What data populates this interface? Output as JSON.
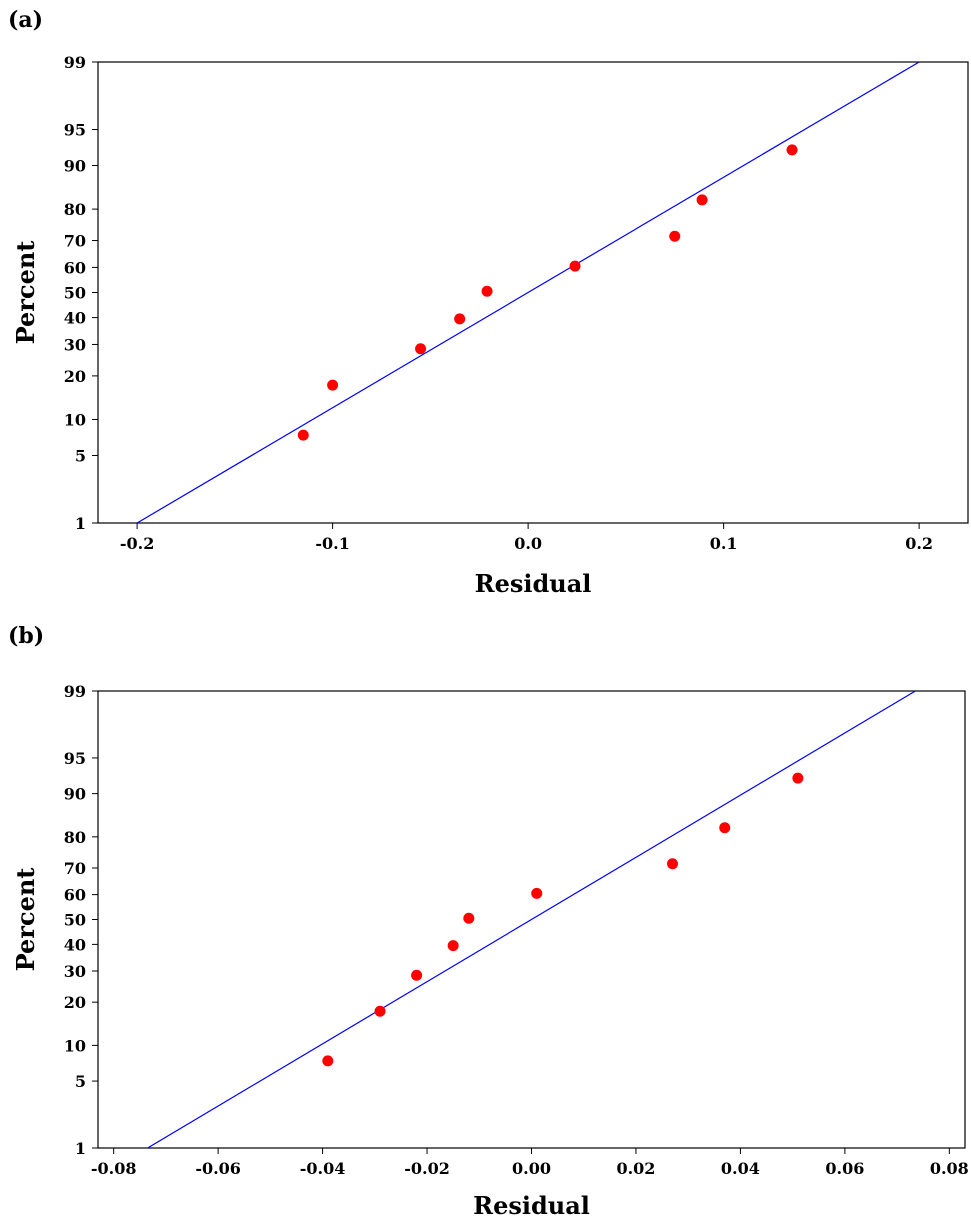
{
  "chart_data": [
    {
      "type": "scatter",
      "panel_label": "(a)",
      "title": "",
      "xlabel": "Residual",
      "ylabel": "Percent",
      "x_ticks": [
        "-0.2",
        "-0.1",
        "0.0",
        "0.1",
        "0.2"
      ],
      "x_tick_values": [
        -0.2,
        -0.1,
        0.0,
        0.1,
        0.2
      ],
      "y_ticks": [
        "1",
        "5",
        "10",
        "20",
        "30",
        "40",
        "50",
        "60",
        "70",
        "80",
        "90",
        "95",
        "99"
      ],
      "y_tick_values": [
        1,
        5,
        10,
        20,
        30,
        40,
        50,
        60,
        70,
        80,
        90,
        95,
        99
      ],
      "y_scale": "normal-probability",
      "xlim": [
        -0.22,
        0.225
      ],
      "ylim": [
        1,
        99
      ],
      "grid": false,
      "points": [
        {
          "x": -0.115,
          "y": 7.5
        },
        {
          "x": -0.1,
          "y": 17.5
        },
        {
          "x": -0.055,
          "y": 28.5
        },
        {
          "x": -0.035,
          "y": 39.5
        },
        {
          "x": -0.021,
          "y": 50.5
        },
        {
          "x": 0.024,
          "y": 60.5
        },
        {
          "x": 0.075,
          "y": 71.5
        },
        {
          "x": 0.089,
          "y": 82.5
        },
        {
          "x": 0.135,
          "y": 92.5
        }
      ],
      "fit_line": {
        "x": [
          -0.2,
          0.2
        ],
        "y": [
          1,
          99
        ]
      },
      "point_color": "#ff0000",
      "line_color": "#0000ff"
    },
    {
      "type": "scatter",
      "panel_label": "(b)",
      "title": "",
      "xlabel": "Residual",
      "ylabel": "Percent",
      "x_ticks": [
        "-0.08",
        "-0.06",
        "-0.04",
        "-0.02",
        "0.00",
        "0.02",
        "0.04",
        "0.06",
        "0.08"
      ],
      "x_tick_values": [
        -0.08,
        -0.06,
        -0.04,
        -0.02,
        0.0,
        0.02,
        0.04,
        0.06,
        0.08
      ],
      "y_ticks": [
        "1",
        "5",
        "10",
        "20",
        "30",
        "40",
        "50",
        "60",
        "70",
        "80",
        "90",
        "95",
        "99"
      ],
      "y_tick_values": [
        1,
        5,
        10,
        20,
        30,
        40,
        50,
        60,
        70,
        80,
        90,
        95,
        99
      ],
      "y_scale": "normal-probability",
      "xlim": [
        -0.083,
        0.083
      ],
      "ylim": [
        1,
        99
      ],
      "grid": false,
      "points": [
        {
          "x": -0.039,
          "y": 7.5
        },
        {
          "x": -0.029,
          "y": 17.5
        },
        {
          "x": -0.022,
          "y": 28.5
        },
        {
          "x": -0.015,
          "y": 39.5
        },
        {
          "x": -0.012,
          "y": 50.5
        },
        {
          "x": 0.001,
          "y": 60.5
        },
        {
          "x": 0.027,
          "y": 71.5
        },
        {
          "x": 0.037,
          "y": 82.5
        },
        {
          "x": 0.051,
          "y": 92.5
        }
      ],
      "fit_line": {
        "x": [
          -0.0735,
          0.0735
        ],
        "y": [
          1,
          99
        ]
      },
      "point_color": "#ff0000",
      "line_color": "#0000ff"
    }
  ]
}
